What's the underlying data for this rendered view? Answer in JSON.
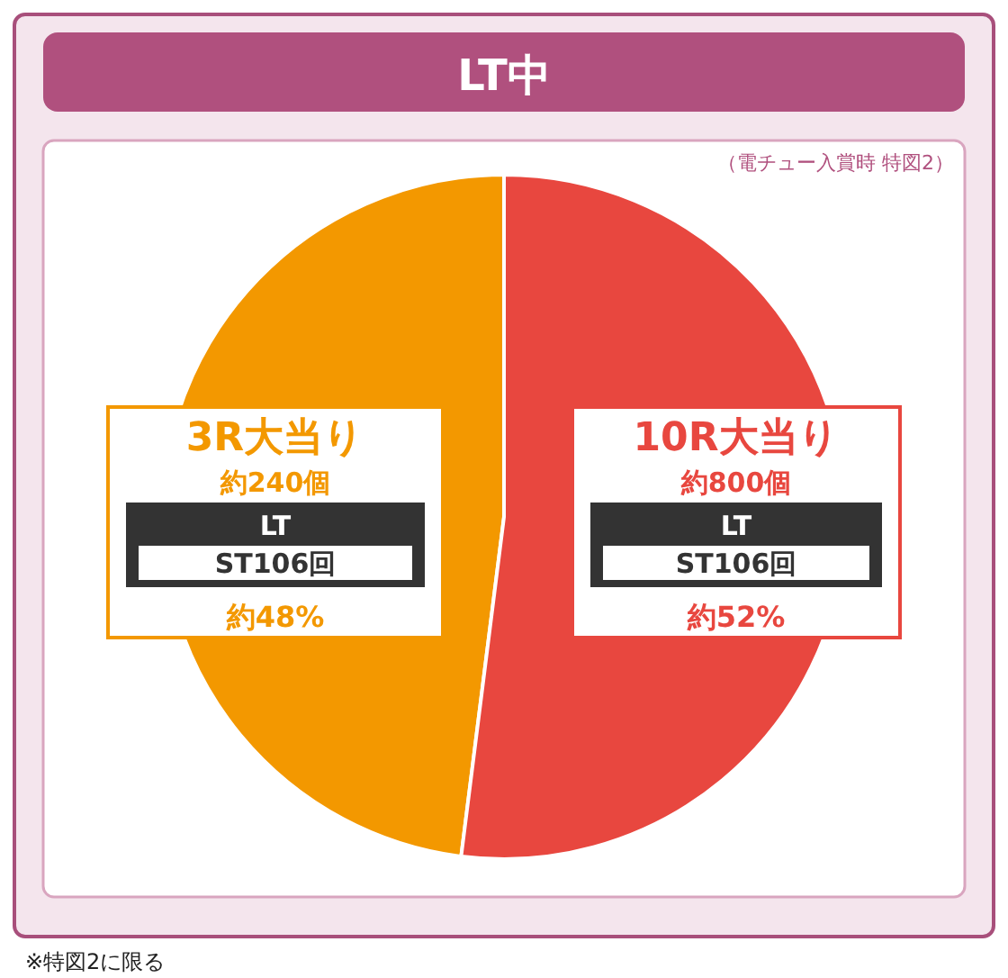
{
  "chart_data": {
    "type": "pie",
    "title": "LT中",
    "subtitle": "（電チュー入賞時 特図2）",
    "categories": [
      "3R大当り",
      "10R大当り"
    ],
    "values": [
      48,
      52
    ],
    "colors": [
      "#f39800",
      "#e8473f"
    ],
    "value_labels": [
      "約48%",
      "約52%"
    ],
    "annotations": [
      {
        "text": "約240個",
        "x": "3R大当り"
      },
      {
        "text": "LT",
        "x": "3R大当り"
      },
      {
        "text": "ST106回",
        "x": "3R大当り"
      },
      {
        "text": "約800個",
        "x": "10R大当り"
      },
      {
        "text": "LT",
        "x": "10R大当り"
      },
      {
        "text": "ST106回",
        "x": "10R大当り"
      },
      "※特図2に限る"
    ]
  }
}
